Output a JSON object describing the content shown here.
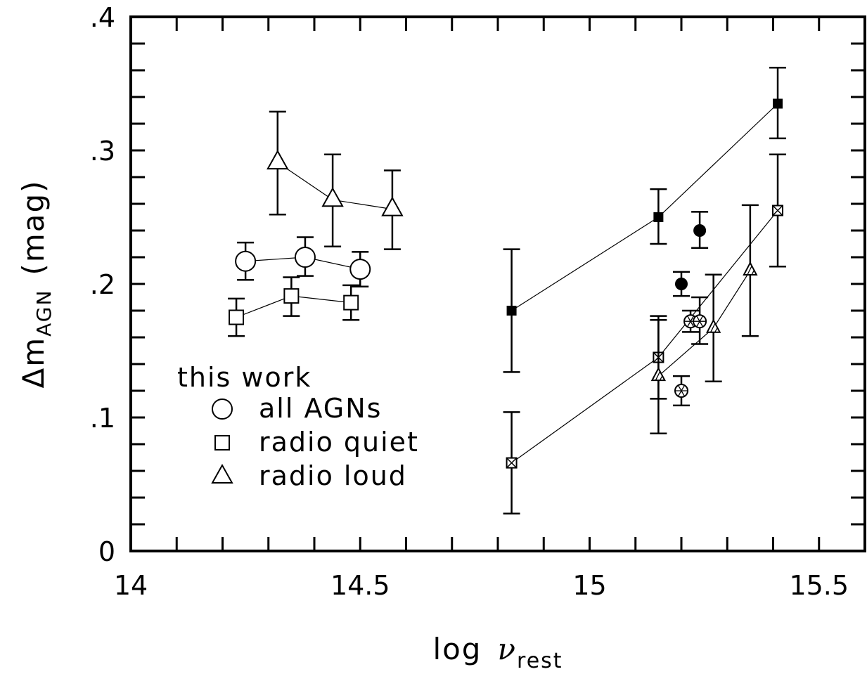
{
  "chart_data": {
    "type": "scatter",
    "xlabel": {
      "main": "log",
      "symbol": "ν",
      "sub": "rest"
    },
    "ylabel": {
      "main": "Δm",
      "sub": "AGN",
      "unit": "(mag)"
    },
    "xlim": [
      14.0,
      15.6
    ],
    "ylim": [
      0.0,
      0.4
    ],
    "x_major_ticks": [
      14.0,
      14.1,
      14.2,
      14.3,
      14.4,
      14.5,
      14.6,
      14.7,
      14.8,
      14.9,
      15.0,
      15.1,
      15.2,
      15.3,
      15.4,
      15.5
    ],
    "x_tick_labels": [
      {
        "value": 14.0,
        "text": "14"
      },
      {
        "value": 14.5,
        "text": "14.5"
      },
      {
        "value": 15.0,
        "text": "15"
      },
      {
        "value": 15.5,
        "text": "15.5"
      }
    ],
    "y_major_ticks": [
      0.0,
      0.02,
      0.04,
      0.06,
      0.08,
      0.1,
      0.12,
      0.14,
      0.16,
      0.18,
      0.2,
      0.22,
      0.24,
      0.26,
      0.28,
      0.3,
      0.32,
      0.34,
      0.36,
      0.38,
      0.4
    ],
    "y_tick_labels": [
      {
        "value": 0.0,
        "text": "0"
      },
      {
        "value": 0.1,
        "text": ".1"
      },
      {
        "value": 0.2,
        "text": ".2"
      },
      {
        "value": 0.3,
        "text": ".3"
      },
      {
        "value": 0.4,
        "text": ".4"
      }
    ],
    "legend": {
      "title": "this work",
      "position": "bottom-left",
      "entries": [
        {
          "marker": "open-circle",
          "label": "all AGNs"
        },
        {
          "marker": "open-square",
          "label": "radio quiet"
        },
        {
          "marker": "open-triangle",
          "label": "radio loud"
        }
      ]
    },
    "series": [
      {
        "marker": "open-triangle",
        "connected": true,
        "points": [
          {
            "x": 14.32,
            "y": 0.291,
            "lo": 0.252,
            "hi": 0.329
          },
          {
            "x": 14.44,
            "y": 0.263,
            "lo": 0.228,
            "hi": 0.297
          },
          {
            "x": 14.57,
            "y": 0.256,
            "lo": 0.226,
            "hi": 0.285
          }
        ]
      },
      {
        "marker": "open-circle",
        "connected": true,
        "points": [
          {
            "x": 14.25,
            "y": 0.217,
            "lo": 0.203,
            "hi": 0.231
          },
          {
            "x": 14.38,
            "y": 0.22,
            "lo": 0.206,
            "hi": 0.235
          },
          {
            "x": 14.5,
            "y": 0.211,
            "lo": 0.198,
            "hi": 0.224
          }
        ]
      },
      {
        "marker": "open-square",
        "connected": true,
        "points": [
          {
            "x": 14.23,
            "y": 0.175,
            "lo": 0.161,
            "hi": 0.189
          },
          {
            "x": 14.35,
            "y": 0.191,
            "lo": 0.176,
            "hi": 0.205
          },
          {
            "x": 14.48,
            "y": 0.186,
            "lo": 0.173,
            "hi": 0.199
          }
        ]
      },
      {
        "marker": "filled-square",
        "connected": true,
        "points": [
          {
            "x": 14.83,
            "y": 0.18,
            "lo": 0.134,
            "hi": 0.226
          },
          {
            "x": 15.15,
            "y": 0.25,
            "lo": 0.23,
            "hi": 0.271
          },
          {
            "x": 15.41,
            "y": 0.335,
            "lo": 0.309,
            "hi": 0.362
          }
        ]
      },
      {
        "marker": "crossed-square",
        "connected": true,
        "points": [
          {
            "x": 14.83,
            "y": 0.066,
            "lo": 0.028,
            "hi": 0.104
          },
          {
            "x": 15.15,
            "y": 0.145,
            "lo": 0.114,
            "hi": 0.176
          },
          {
            "x": 15.41,
            "y": 0.255,
            "lo": 0.213,
            "hi": 0.297
          }
        ]
      },
      {
        "marker": "hatched-triangle",
        "connected": true,
        "points": [
          {
            "x": 15.15,
            "y": 0.131,
            "lo": 0.088,
            "hi": 0.173
          },
          {
            "x": 15.27,
            "y": 0.167,
            "lo": 0.127,
            "hi": 0.207
          },
          {
            "x": 15.35,
            "y": 0.21,
            "lo": 0.161,
            "hi": 0.259
          }
        ]
      },
      {
        "marker": "starred-circle",
        "connected": true,
        "points": [
          {
            "x": 15.22,
            "y": 0.172,
            "lo": 0.164,
            "hi": 0.18
          },
          {
            "x": 15.24,
            "y": 0.172,
            "lo": 0.155,
            "hi": 0.19
          }
        ]
      },
      {
        "marker": "filled-circle",
        "connected": false,
        "points": [
          {
            "x": 15.24,
            "y": 0.24,
            "lo": 0.227,
            "hi": 0.254
          }
        ]
      },
      {
        "marker": "filled-circle",
        "connected": false,
        "points": [
          {
            "x": 15.2,
            "y": 0.2,
            "lo": 0.191,
            "hi": 0.209
          }
        ]
      },
      {
        "marker": "starred-circle",
        "connected": false,
        "points": [
          {
            "x": 15.2,
            "y": 0.12,
            "lo": 0.109,
            "hi": 0.131
          }
        ]
      }
    ]
  }
}
